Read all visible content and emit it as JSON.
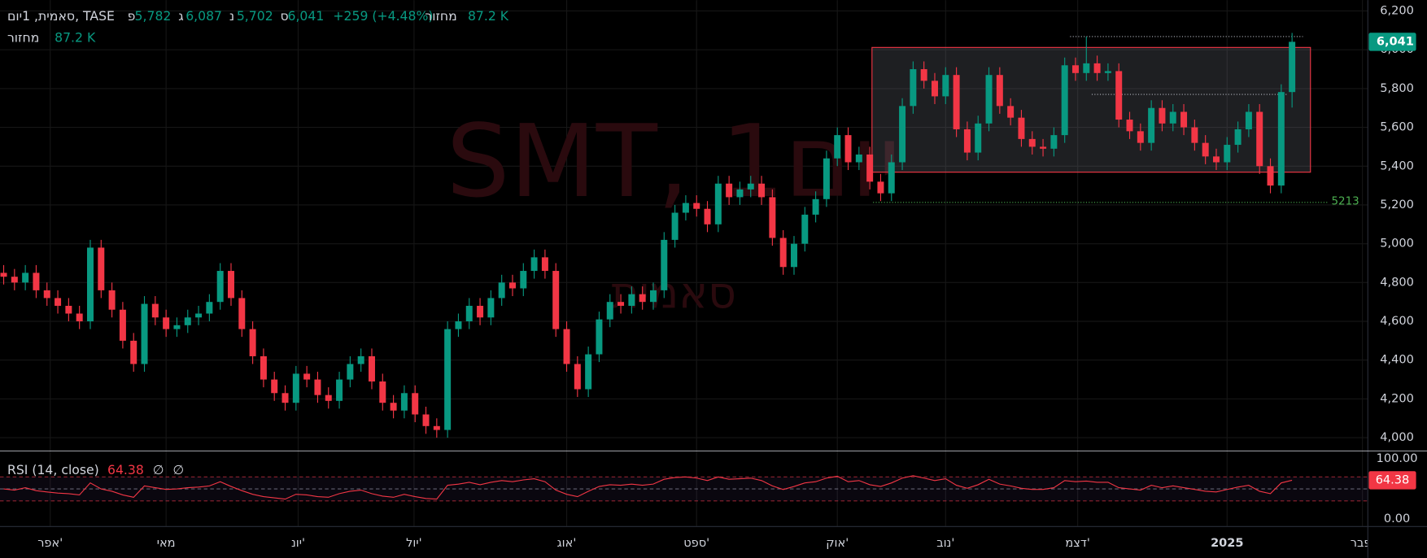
{
  "chart_data": {
    "type": "candlestick",
    "title": "סאמית, 1יום, TASE",
    "ohlc_prefixes": [
      "פ",
      "ג",
      "נ",
      "ס"
    ],
    "ohlc_labels": [
      "5,782",
      "6,087",
      "5,702",
      "6,041"
    ],
    "change_label": "+259 (+4.48%)",
    "volume_title": "מחזור",
    "volume_label": "87.2 K",
    "watermark": "SMT, 1יום",
    "watermark_sub": "סאמית",
    "colors": {
      "up": "#089981",
      "down": "#f23645"
    },
    "open": [
      4850,
      4830,
      4800,
      4850,
      4760,
      4720,
      4680,
      4640,
      4600,
      4980,
      4760,
      4660,
      4500,
      4380,
      4690,
      4620,
      4560,
      4580,
      4620,
      4640,
      4700,
      4860,
      4720,
      4560,
      4420,
      4300,
      4230,
      4180,
      4330,
      4300,
      4220,
      4190,
      4300,
      4380,
      4420,
      4290,
      4180,
      4140,
      4230,
      4120,
      4060,
      4040,
      4560,
      4600,
      4680,
      4620,
      4720,
      4800,
      4770,
      4860,
      4930,
      4860,
      4560,
      4380,
      4250,
      4430,
      4610,
      4700,
      4680,
      4740,
      4700,
      4760,
      5020,
      5160,
      5210,
      5180,
      5100,
      5310,
      5240,
      5280,
      5310,
      5240,
      5030,
      4880,
      5000,
      5150,
      5230,
      5440,
      5560,
      5420,
      5460,
      5320,
      5260,
      5420,
      5710,
      5900,
      5840,
      5760,
      5870,
      5590,
      5470,
      5620,
      5870,
      5710,
      5650,
      5540,
      5500,
      5490,
      5560,
      5920,
      5880,
      5930,
      5880,
      5890,
      5640,
      5580,
      5520,
      5700,
      5620,
      5680,
      5600,
      5520,
      5450,
      5420,
      5510,
      5590,
      5680,
      5400,
      5300,
      5782
    ],
    "high": [
      4890,
      4870,
      4890,
      4890,
      4800,
      4760,
      4720,
      4680,
      5020,
      5020,
      4800,
      4700,
      4540,
      4730,
      4730,
      4660,
      4620,
      4660,
      4680,
      4740,
      4900,
      4900,
      4760,
      4600,
      4460,
      4340,
      4270,
      4370,
      4370,
      4340,
      4260,
      4340,
      4420,
      4460,
      4460,
      4330,
      4220,
      4270,
      4270,
      4160,
      4100,
      4600,
      4640,
      4720,
      4720,
      4760,
      4840,
      4840,
      4900,
      4970,
      4970,
      4900,
      4600,
      4420,
      4470,
      4650,
      4740,
      4740,
      4780,
      4780,
      4800,
      5060,
      5200,
      5250,
      5250,
      5220,
      5350,
      5350,
      5320,
      5350,
      5350,
      5280,
      5070,
      5040,
      5190,
      5270,
      5480,
      5600,
      5600,
      5500,
      5500,
      5360,
      5460,
      5750,
      5940,
      5940,
      5880,
      5910,
      5910,
      5630,
      5660,
      5910,
      5910,
      5750,
      5690,
      5580,
      5540,
      5600,
      5960,
      5960,
      6068,
      5970,
      5930,
      5930,
      5680,
      5620,
      5740,
      5740,
      5720,
      5720,
      5640,
      5560,
      5490,
      5550,
      5630,
      5720,
      5720,
      5440,
      5822,
      6087
    ],
    "low": [
      4790,
      4760,
      4760,
      4720,
      4680,
      4640,
      4600,
      4560,
      4560,
      4720,
      4620,
      4460,
      4340,
      4340,
      4580,
      4520,
      4520,
      4540,
      4580,
      4600,
      4660,
      4680,
      4520,
      4380,
      4260,
      4190,
      4140,
      4140,
      4260,
      4180,
      4150,
      4150,
      4260,
      4340,
      4250,
      4140,
      4100,
      4100,
      4080,
      4020,
      4000,
      4000,
      4520,
      4560,
      4580,
      4580,
      4680,
      4730,
      4730,
      4820,
      4820,
      4520,
      4340,
      4210,
      4210,
      4390,
      4570,
      4640,
      4640,
      4660,
      4660,
      4720,
      4980,
      5120,
      5140,
      5060,
      5060,
      5200,
      5200,
      5240,
      5200,
      4990,
      4840,
      4840,
      4960,
      5110,
      5190,
      5400,
      5380,
      5380,
      5280,
      5220,
      5220,
      5380,
      5670,
      5800,
      5720,
      5720,
      5550,
      5430,
      5430,
      5580,
      5670,
      5610,
      5500,
      5460,
      5450,
      5450,
      5520,
      5840,
      5840,
      5840,
      5840,
      5600,
      5540,
      5480,
      5480,
      5580,
      5580,
      5560,
      5480,
      5410,
      5380,
      5380,
      5470,
      5550,
      5360,
      5260,
      5260,
      5702
    ],
    "close": [
      4830,
      4800,
      4850,
      4760,
      4720,
      4680,
      4640,
      4600,
      4980,
      4760,
      4660,
      4500,
      4380,
      4690,
      4620,
      4560,
      4580,
      4620,
      4640,
      4700,
      4860,
      4720,
      4560,
      4420,
      4300,
      4230,
      4180,
      4330,
      4300,
      4220,
      4190,
      4300,
      4380,
      4420,
      4290,
      4180,
      4140,
      4230,
      4120,
      4060,
      4040,
      4560,
      4600,
      4680,
      4620,
      4720,
      4800,
      4770,
      4860,
      4930,
      4860,
      4560,
      4380,
      4250,
      4430,
      4610,
      4700,
      4680,
      4740,
      4700,
      4760,
      5020,
      5160,
      5210,
      5180,
      5100,
      5310,
      5240,
      5280,
      5310,
      5240,
      5030,
      4880,
      5000,
      5150,
      5230,
      5440,
      5560,
      5420,
      5460,
      5320,
      5260,
      5420,
      5710,
      5900,
      5840,
      5760,
      5870,
      5590,
      5470,
      5620,
      5870,
      5710,
      5650,
      5540,
      5500,
      5490,
      5560,
      5920,
      5880,
      5930,
      5880,
      5890,
      5640,
      5580,
      5520,
      5700,
      5620,
      5680,
      5600,
      5520,
      5450,
      5420,
      5510,
      5590,
      5680,
      5400,
      5300,
      5782,
      6041
    ],
    "xlim": [
      -0.34,
      126.0
    ],
    "xticks": [
      {
        "value": 4.3,
        "label": "אפר'"
      },
      {
        "value": 15,
        "label": "מאי"
      },
      {
        "value": 27.2,
        "label": "יונ'"
      },
      {
        "value": 37.9,
        "label": "יול'"
      },
      {
        "value": 52,
        "label": "אוג'"
      },
      {
        "value": 64,
        "label": "ספט'"
      },
      {
        "value": 77,
        "label": "אוק'"
      },
      {
        "value": 87,
        "label": "נוב'"
      },
      {
        "value": 99.2,
        "label": "דצמ'"
      },
      {
        "value": 113,
        "label": "2025"
      },
      {
        "value": 125.5,
        "label": "פבר'"
      }
    ],
    "ylim": [
      3934,
      6256
    ],
    "yticks": [
      {
        "value": 4000,
        "label": "4,000"
      },
      {
        "value": 4200,
        "label": "4,200"
      },
      {
        "value": 4400,
        "label": "4,400"
      },
      {
        "value": 4600,
        "label": "4,600"
      },
      {
        "value": 4800,
        "label": "4,800"
      },
      {
        "value": 5000,
        "label": "5,000"
      },
      {
        "value": 5200,
        "label": "5,200"
      },
      {
        "value": 5400,
        "label": "5,400"
      },
      {
        "value": 5600,
        "label": "5,600"
      },
      {
        "value": 5800,
        "label": "5,800"
      },
      {
        "value": 6000,
        "label": "6,000"
      },
      {
        "value": 6200,
        "label": "6,200"
      }
    ],
    "grid": true,
    "last_price_label": "6,041",
    "drawings": {
      "box": {
        "x": [
          80.2,
          120.7
        ],
        "y": [
          5369,
          6012
        ]
      },
      "lines": [
        {
          "value": 6068,
          "x": [
            98.5,
            120
          ]
        },
        {
          "value": 5770,
          "x": [
            100.5,
            118.6
          ]
        }
      ],
      "support": {
        "value": 5213,
        "x": [
          80.3,
          122.3
        ]
      }
    },
    "rsi": {
      "title": "RSI (14, close)",
      "extra": [
        "∅",
        "∅"
      ],
      "color": "#f23645",
      "ylim": [
        -12,
        111
      ],
      "yticks": [
        {
          "value": 100,
          "label": "100.00"
        },
        {
          "value": 0,
          "label": "0.00"
        }
      ],
      "bands": [
        70,
        50,
        30
      ],
      "values": [
        50,
        48,
        52,
        47,
        45,
        43,
        42,
        40,
        60,
        50,
        46,
        40,
        36,
        55,
        52,
        49,
        50,
        52,
        53,
        55,
        62,
        54,
        47,
        41,
        37,
        35,
        33,
        41,
        40,
        37,
        36,
        42,
        46,
        48,
        42,
        38,
        36,
        41,
        37,
        34,
        33,
        56,
        58,
        61,
        57,
        61,
        64,
        62,
        65,
        67,
        62,
        48,
        41,
        37,
        46,
        54,
        57,
        56,
        58,
        56,
        58,
        66,
        69,
        70,
        68,
        64,
        70,
        66,
        67,
        68,
        64,
        55,
        49,
        54,
        60,
        62,
        68,
        71,
        62,
        64,
        57,
        54,
        60,
        68,
        72,
        68,
        64,
        67,
        56,
        51,
        57,
        66,
        58,
        55,
        51,
        49,
        49,
        52,
        64,
        62,
        63,
        61,
        61,
        52,
        50,
        48,
        56,
        52,
        55,
        52,
        49,
        46,
        45,
        49,
        53,
        56,
        46,
        42,
        60,
        64.38
      ]
    }
  }
}
